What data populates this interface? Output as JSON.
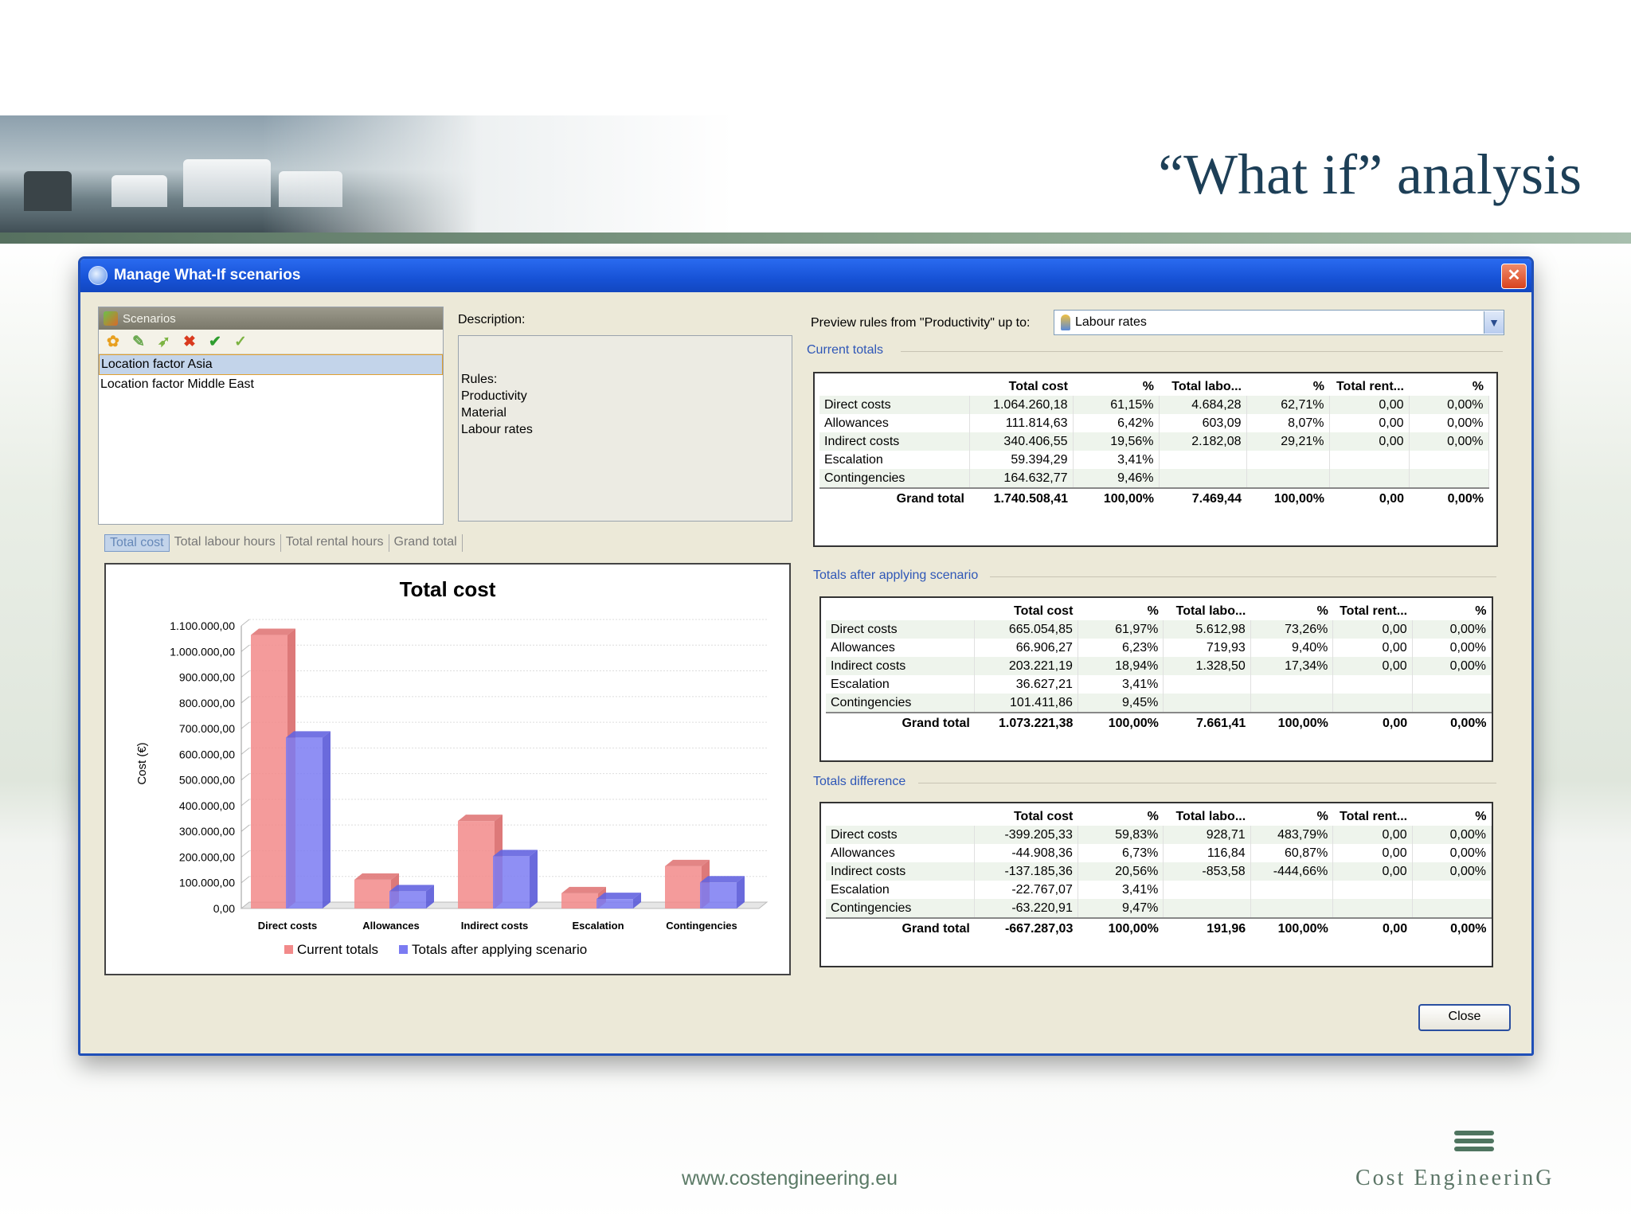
{
  "slide": {
    "title": "“What if” analysis",
    "footer_url": "www.costengineering.eu",
    "logo_text": "Cost EngineerinG"
  },
  "window": {
    "title": "Manage What-If scenarios",
    "close_button": "Close"
  },
  "scenarios": {
    "header": "Scenarios",
    "tools": [
      "new-icon",
      "edit-icon",
      "copy-icon",
      "delete-icon",
      "apply-icon",
      "approve-icon"
    ],
    "items": [
      "Location factor Asia",
      "Location factor Middle East"
    ],
    "selected_index": 0
  },
  "description": {
    "label": "Description:",
    "lines": [
      "Rules:",
      "Productivity",
      "Material",
      "Labour rates"
    ]
  },
  "chart_tabs": [
    "Total cost",
    "Total labour hours",
    "Total rental hours",
    "Grand total"
  ],
  "preview": {
    "label": "Preview rules from \"Productivity\" up to:",
    "selected": "Labour rates"
  },
  "colors": {
    "current": "#f28a8a",
    "after": "#7b7bf2",
    "group_label": "#2f57b7"
  },
  "chart_data": {
    "type": "bar",
    "title": "Total cost",
    "xlabel": "",
    "ylabel": "Cost (€)",
    "categories": [
      "Direct costs",
      "Allowances",
      "Indirect costs",
      "Escalation",
      "Contingencies"
    ],
    "ylim": [
      0,
      1100000
    ],
    "yticks": [
      "0,00",
      "100.000,00",
      "200.000,00",
      "300.000,00",
      "400.000,00",
      "500.000,00",
      "600.000,00",
      "700.000,00",
      "800.000,00",
      "900.000,00",
      "1.000.000,00",
      "1.100.000,00"
    ],
    "series": [
      {
        "name": "Current totals",
        "values": [
          1064260.18,
          111814.63,
          340406.55,
          59394.29,
          164632.77
        ]
      },
      {
        "name": "Totals after applying scenario",
        "values": [
          665054.85,
          66906.27,
          203221.19,
          36627.21,
          101411.86
        ]
      }
    ],
    "legend": "bottom"
  },
  "tables": {
    "header": [
      "",
      "Total cost",
      "%",
      "Total labo...",
      "%",
      "Total rent...",
      "%"
    ],
    "current": {
      "label": "Current totals",
      "rows": [
        [
          "Direct costs",
          "1.064.260,18",
          "61,15%",
          "4.684,28",
          "62,71%",
          "0,00",
          "0,00%"
        ],
        [
          "Allowances",
          "111.814,63",
          "6,42%",
          "603,09",
          "8,07%",
          "0,00",
          "0,00%"
        ],
        [
          "Indirect costs",
          "340.406,55",
          "19,56%",
          "2.182,08",
          "29,21%",
          "0,00",
          "0,00%"
        ],
        [
          "Escalation",
          "59.394,29",
          "3,41%",
          "",
          "",
          "",
          ""
        ],
        [
          "Contingencies",
          "164.632,77",
          "9,46%",
          "",
          "",
          "",
          ""
        ]
      ],
      "grand": [
        "Grand total",
        "1.740.508,41",
        "100,00%",
        "7.469,44",
        "100,00%",
        "0,00",
        "0,00%"
      ]
    },
    "after": {
      "label": "Totals after applying scenario",
      "rows": [
        [
          "Direct costs",
          "665.054,85",
          "61,97%",
          "5.612,98",
          "73,26%",
          "0,00",
          "0,00%"
        ],
        [
          "Allowances",
          "66.906,27",
          "6,23%",
          "719,93",
          "9,40%",
          "0,00",
          "0,00%"
        ],
        [
          "Indirect costs",
          "203.221,19",
          "18,94%",
          "1.328,50",
          "17,34%",
          "0,00",
          "0,00%"
        ],
        [
          "Escalation",
          "36.627,21",
          "3,41%",
          "",
          "",
          "",
          ""
        ],
        [
          "Contingencies",
          "101.411,86",
          "9,45%",
          "",
          "",
          "",
          ""
        ]
      ],
      "grand": [
        "Grand total",
        "1.073.221,38",
        "100,00%",
        "7.661,41",
        "100,00%",
        "0,00",
        "0,00%"
      ]
    },
    "diff": {
      "label": "Totals difference",
      "rows": [
        [
          "Direct costs",
          "-399.205,33",
          "59,83%",
          "928,71",
          "483,79%",
          "0,00",
          "0,00%"
        ],
        [
          "Allowances",
          "-44.908,36",
          "6,73%",
          "116,84",
          "60,87%",
          "0,00",
          "0,00%"
        ],
        [
          "Indirect costs",
          "-137.185,36",
          "20,56%",
          "-853,58",
          "-444,66%",
          "0,00",
          "0,00%"
        ],
        [
          "Escalation",
          "-22.767,07",
          "3,41%",
          "",
          "",
          "",
          ""
        ],
        [
          "Contingencies",
          "-63.220,91",
          "9,47%",
          "",
          "",
          "",
          ""
        ]
      ],
      "grand": [
        "Grand total",
        "-667.287,03",
        "100,00%",
        "191,96",
        "100,00%",
        "0,00",
        "0,00%"
      ]
    }
  }
}
